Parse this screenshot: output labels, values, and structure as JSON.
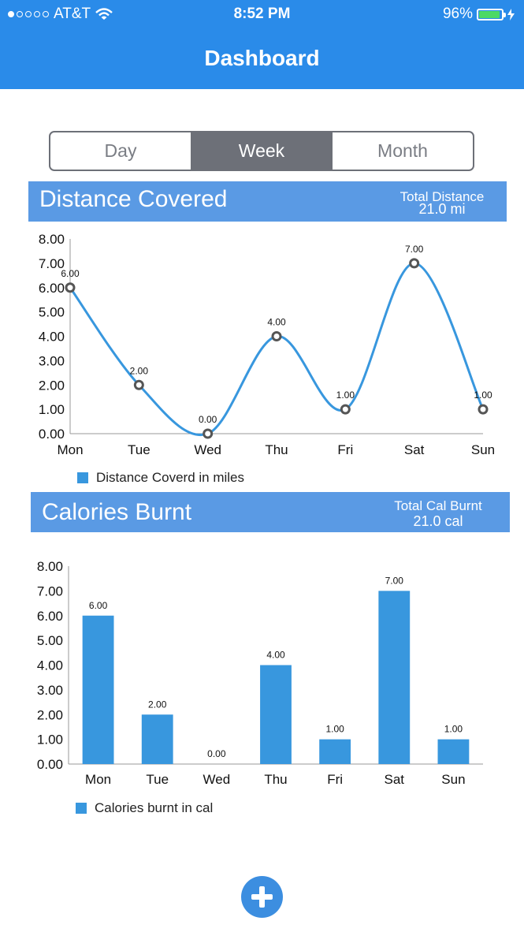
{
  "status_bar": {
    "carrier": "AT&T",
    "time": "8:52 PM",
    "battery": "96%"
  },
  "nav": {
    "title": "Dashboard"
  },
  "segments": [
    {
      "label": "Day",
      "selected": false
    },
    {
      "label": "Week",
      "selected": true
    },
    {
      "label": "Month",
      "selected": false
    }
  ],
  "distance": {
    "title": "Distance Covered",
    "total_label": "Total Distance",
    "total_value": "21.0  mi",
    "legend": "Distance Coverd in miles"
  },
  "calories": {
    "title": "Calories Burnt",
    "total_label": "Total Cal Burnt",
    "total_value": "21.0    cal",
    "legend": "Calories burnt in cal"
  },
  "colors": {
    "accent": "#2a8be9",
    "header": "#5a9ae4",
    "series": "#3897de",
    "segment": "#6d7078"
  },
  "icons": {
    "fab": "plus-icon"
  },
  "chart_data": [
    {
      "type": "line",
      "categories": [
        "Mon",
        "Tue",
        "Wed",
        "Thu",
        "Fri",
        "Sat",
        "Sun"
      ],
      "series": [
        {
          "name": "Distance Coverd in miles",
          "values": [
            6,
            2,
            0,
            4,
            1,
            7,
            1
          ]
        }
      ],
      "ylim": [
        0,
        8
      ],
      "yticks": [
        "0.00",
        "1.00",
        "2.00",
        "3.00",
        "4.00",
        "5.00",
        "6.00",
        "7.00",
        "8.00"
      ],
      "data_labels": [
        "6.00",
        "2.00",
        "0.00",
        "4.00",
        "1.00",
        "7.00",
        "1.00"
      ],
      "grid": false,
      "legend_position": "bottom-left"
    },
    {
      "type": "bar",
      "categories": [
        "Mon",
        "Tue",
        "Wed",
        "Thu",
        "Fri",
        "Sat",
        "Sun"
      ],
      "series": [
        {
          "name": "Calories burnt in cal",
          "values": [
            6,
            2,
            0,
            4,
            1,
            7,
            1
          ]
        }
      ],
      "ylim": [
        0,
        8
      ],
      "yticks": [
        "0.00",
        "1.00",
        "2.00",
        "3.00",
        "4.00",
        "5.00",
        "6.00",
        "7.00",
        "8.00"
      ],
      "data_labels": [
        "6.00",
        "2.00",
        "0.00",
        "4.00",
        "1.00",
        "7.00",
        "1.00"
      ],
      "grid": false,
      "legend_position": "bottom-left"
    }
  ]
}
